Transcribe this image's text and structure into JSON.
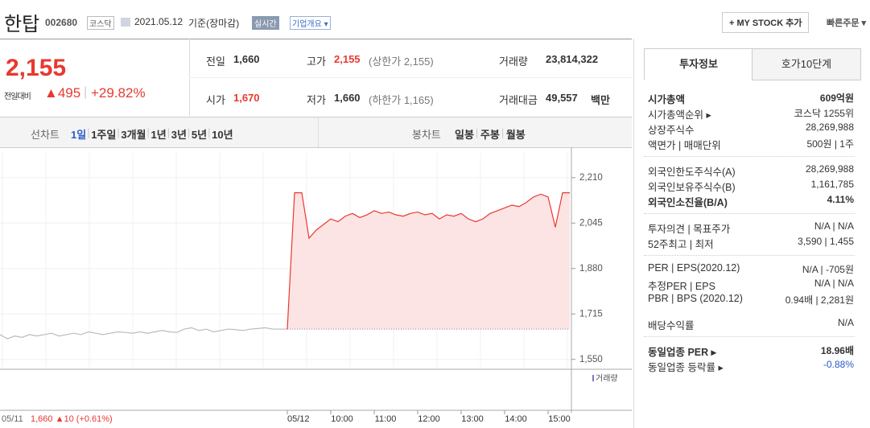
{
  "header": {
    "name": "한탑",
    "code": "002680",
    "market": "코스닥",
    "date": "2021.05.12",
    "basis": "기준(장마감)",
    "realtime": "실시간",
    "company": "기업개요 ▾",
    "mystock": "+ MY STOCK 추가",
    "quick_order": "빠른주문 ▾"
  },
  "price": {
    "current": "2,155",
    "change_label": "전일대비",
    "change": "▲495",
    "rate": "+29.82%"
  },
  "summary": {
    "prev": {
      "label": "전일",
      "value": "1,660"
    },
    "high": {
      "label": "고가",
      "value": "2,155",
      "limit": "(상한가 2,155)"
    },
    "volume": {
      "label": "거래량",
      "value": "23,814,322"
    },
    "open": {
      "label": "시가",
      "value": "1,670"
    },
    "low": {
      "label": "저가",
      "value": "1,660",
      "limit": "(하한가 1,165)"
    },
    "amount": {
      "label": "거래대금",
      "value": "49,557",
      "unit": "백만"
    }
  },
  "chart_tabs": {
    "line_label": "선차트",
    "line": [
      "1일",
      "1주일",
      "3개월",
      "1년",
      "3년",
      "5년",
      "10년"
    ],
    "candle_label": "봉차트",
    "candle": [
      "일봉",
      "주봉",
      "월봉"
    ]
  },
  "chart_data": {
    "type": "line",
    "ylim": [
      1520,
      2300
    ],
    "yticks": [
      {
        "value": 2210,
        "label": "2,210"
      },
      {
        "value": 2045,
        "label": "2,045"
      },
      {
        "value": 1880,
        "label": "1,880"
      },
      {
        "value": 1715,
        "label": "1,715"
      },
      {
        "value": 1550,
        "label": "1,550"
      }
    ],
    "reference": 1660,
    "series": [
      {
        "color": "#bbbbbb",
        "values": [
          1640,
          1625,
          1635,
          1630,
          1640,
          1635,
          1640,
          1645,
          1635,
          1640,
          1645,
          1640,
          1650,
          1645,
          1640,
          1645,
          1650,
          1648,
          1645,
          1650,
          1645,
          1650,
          1655,
          1650,
          1648,
          1660,
          1665,
          1655,
          1660,
          1650,
          1655,
          1660,
          1658,
          1655,
          1660,
          1662,
          1665,
          1660,
          1660,
          1660
        ]
      },
      {
        "color": "#e8392f",
        "fill": "#fde4e4",
        "values": [
          1660,
          2155,
          2155,
          1990,
          2020,
          2040,
          2060,
          2050,
          2070,
          2080,
          2065,
          2075,
          2090,
          2080,
          2085,
          2075,
          2070,
          2080,
          2085,
          2075,
          2080,
          2060,
          2075,
          2070,
          2080,
          2060,
          2050,
          2060,
          2080,
          2090,
          2100,
          2110,
          2105,
          2120,
          2140,
          2150,
          2140,
          2030,
          2155,
          2155
        ]
      }
    ],
    "x_labels": [
      "05/12",
      "10:00",
      "11:00",
      "12:00",
      "13:00",
      "14:00",
      "15:00"
    ],
    "volume_label": "거래량",
    "prev_day": {
      "date": "05/11",
      "close": "1,660",
      "change": "▲10",
      "rate": "(+0.61%)"
    }
  },
  "info": {
    "tabs": [
      "투자정보",
      "호가10단계"
    ],
    "groups": [
      [
        {
          "label": "시가총액",
          "value": "609억원",
          "bold": true
        },
        {
          "label": "시가총액순위 ▸",
          "value": "코스닥 1255위"
        },
        {
          "label": "상장주식수",
          "value": "28,269,988"
        },
        {
          "label": "액면가 | 매매단위",
          "value": "500원 | 1주"
        }
      ],
      [
        {
          "label": "외국인한도주식수(A)",
          "value": "28,269,988"
        },
        {
          "label": "외국인보유주식수(B)",
          "value": "1,161,785"
        },
        {
          "label": "외국인소진율(B/A)",
          "value": "4.11%",
          "bold": true
        }
      ],
      [
        {
          "label": "투자의견 | 목표주가",
          "value": "N/A | N/A"
        },
        {
          "label": "52주최고 | 최저",
          "value": "3,590 | 1,455"
        }
      ],
      [
        {
          "label": "PER | EPS(2020.12)",
          "value": "N/A | -705원"
        },
        {
          "label": "추정PER | EPS",
          "value": "N/A | N/A"
        },
        {
          "label": "PBR | BPS (2020.12)",
          "value": "0.94배 | 2,281원"
        },
        {
          "label": "배당수익률",
          "value": "N/A"
        }
      ],
      [
        {
          "label": "동일업종 PER ▸",
          "value": "18.96배",
          "bold": true
        },
        {
          "label": "동일업종 등락률 ▸",
          "value": "-0.88%",
          "blue": true
        }
      ]
    ]
  }
}
